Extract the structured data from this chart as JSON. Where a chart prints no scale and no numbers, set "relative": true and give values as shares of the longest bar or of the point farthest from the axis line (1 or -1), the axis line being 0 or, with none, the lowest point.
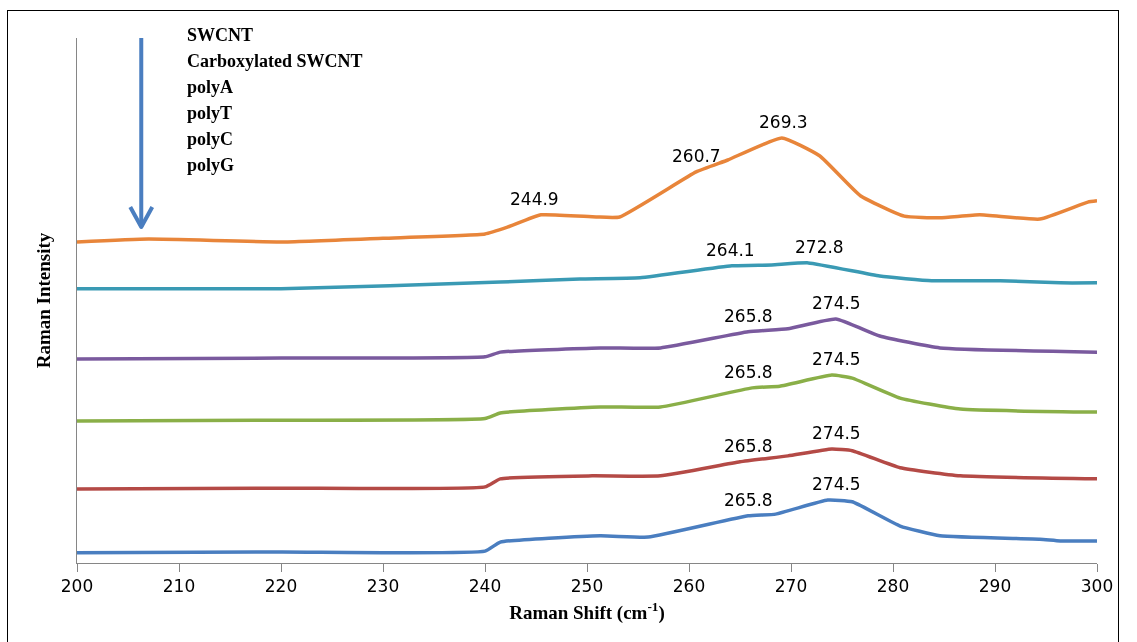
{
  "chart_data": {
    "type": "line",
    "relative": true,
    "xlabel": "Raman Shift (cm$^{-1}$)",
    "ylabel": "Raman Intensity",
    "xlim": [
      200,
      300
    ],
    "xticks": [
      200,
      210,
      220,
      230,
      240,
      250,
      260,
      270,
      280,
      290,
      300
    ],
    "grid": false,
    "marker": "none",
    "line_style": "solid",
    "series": [
      {
        "color": "#e8853a",
        "x": [
          200,
          207,
          220,
          230,
          240,
          242.2,
          245.5,
          250.9,
          253.2,
          260.7,
          263.8,
          269.1,
          272.8,
          276.8,
          281.1,
          284.6,
          288.5,
          294.4,
          299.1,
          300
        ],
        "values": [
          0.755,
          0.762,
          0.755,
          0.764,
          0.774,
          0.79,
          0.819,
          0.814,
          0.814,
          0.92,
          0.948,
          1.0,
          0.958,
          0.864,
          0.816,
          0.812,
          0.819,
          0.809,
          0.849,
          0.852
        ]
      },
      {
        "color": "#3a9ab4",
        "x": [
          200,
          220,
          241.5,
          249.3,
          255.2,
          264.2,
          268.1,
          271.7,
          278.7,
          283.8,
          290.5,
          296.4,
          300
        ],
        "values": [
          0.645,
          0.645,
          0.661,
          0.668,
          0.671,
          0.699,
          0.701,
          0.706,
          0.675,
          0.664,
          0.664,
          0.659,
          0.659
        ]
      },
      {
        "color": "#7a5a9e",
        "x": [
          200,
          220,
          240,
          241.5,
          251.3,
          257.2,
          265.8,
          269.7,
          274.4,
          278.7,
          284.6,
          300
        ],
        "values": [
          0.48,
          0.482,
          0.485,
          0.496,
          0.506,
          0.506,
          0.544,
          0.551,
          0.574,
          0.534,
          0.506,
          0.496
        ]
      },
      {
        "color": "#8aaf48",
        "x": [
          200,
          220,
          240,
          241.5,
          251.3,
          257.2,
          266.2,
          268.9,
          274,
          276,
          280.7,
          286.6,
          300
        ],
        "values": [
          0.334,
          0.336,
          0.34,
          0.353,
          0.367,
          0.367,
          0.412,
          0.416,
          0.442,
          0.435,
          0.388,
          0.362,
          0.355
        ]
      },
      {
        "color": "#b44a46",
        "x": [
          200,
          220,
          240,
          241.5,
          250.5,
          257.2,
          265,
          269.7,
          274,
          276,
          280.7,
          286.6,
          300
        ],
        "values": [
          0.174,
          0.176,
          0.179,
          0.198,
          0.205,
          0.205,
          0.238,
          0.252,
          0.268,
          0.264,
          0.224,
          0.205,
          0.198
        ]
      },
      {
        "color": "#4a7ec0",
        "x": [
          200,
          220,
          240,
          241.5,
          251.3,
          256,
          265.8,
          268.5,
          273.6,
          276,
          280.7,
          284.6,
          294.4,
          296.4,
          300
        ],
        "values": [
          0.024,
          0.026,
          0.028,
          0.049,
          0.064,
          0.061,
          0.111,
          0.115,
          0.148,
          0.144,
          0.087,
          0.064,
          0.056,
          0.052,
          0.052
        ]
      }
    ],
    "annotations": [
      "SWCNT",
      "Carboxylated SWCNT",
      "polyA",
      "polyT",
      "polyC",
      "polyG",
      {
        "text": "244.9",
        "x": 244.9,
        "y": 0.819
      },
      {
        "text": "260.7",
        "x": 260.7,
        "y": 0.92
      },
      {
        "text": "269.3",
        "x": 269.3,
        "y": 1.0
      },
      {
        "text": "264.1",
        "x": 264.1,
        "y": 0.699
      },
      {
        "text": "272.8",
        "x": 272.8,
        "y": 0.706
      },
      {
        "text": "265.8",
        "x": 265.8,
        "y": 0.544
      },
      {
        "text": "274.5",
        "x": 274.5,
        "y": 0.574
      },
      {
        "text": "265.8",
        "x": 265.8,
        "y": 0.412
      },
      {
        "text": "274.5",
        "x": 274.5,
        "y": 0.442
      },
      {
        "text": "265.8",
        "x": 265.8,
        "y": 0.238
      },
      {
        "text": "274.5",
        "x": 274.5,
        "y": 0.268
      },
      {
        "text": "265.8",
        "x": 265.8,
        "y": 0.111
      },
      {
        "text": "274.5",
        "x": 274.5,
        "y": 0.148
      }
    ]
  }
}
